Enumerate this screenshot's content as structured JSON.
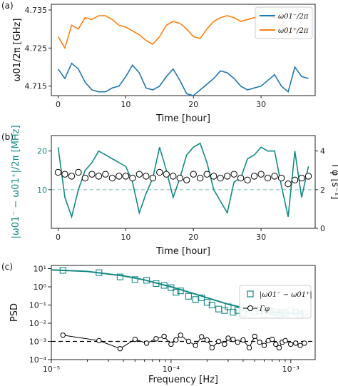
{
  "chart_data": [
    {
      "panel": "(a)",
      "type": "line",
      "xlabel": "Time [hour]",
      "ylabel": "ω01/2π [GHz]",
      "xlim": [
        -1,
        38
      ],
      "ylim": [
        4.7125,
        4.7365
      ],
      "xticks": [
        0,
        10,
        20,
        30
      ],
      "yticks": [
        4.715,
        4.725,
        4.735
      ],
      "colors": {
        "s1": "#1f77b4",
        "s2": "#ff7f0e"
      },
      "legend": [
        "ω01⁻/2π",
        "ω01⁺/2π"
      ],
      "legend_position": "top-right",
      "series": [
        {
          "name": "ω01⁻/2π",
          "x": [
            0,
            1,
            2,
            3,
            4,
            5,
            6,
            7,
            8,
            9,
            10,
            11,
            12,
            13,
            14,
            15,
            16,
            17,
            18,
            19,
            20,
            21,
            22,
            23,
            24,
            25,
            26,
            27,
            28,
            29,
            30,
            31,
            32,
            33,
            34,
            35,
            36,
            37
          ],
          "values": [
            4.7195,
            4.717,
            4.721,
            4.7195,
            4.716,
            4.714,
            4.7135,
            4.7135,
            4.7145,
            4.715,
            4.7175,
            4.7205,
            4.7185,
            4.7145,
            4.714,
            4.715,
            4.7175,
            4.7195,
            4.7165,
            4.713,
            4.7125,
            4.714,
            4.7155,
            4.717,
            4.719,
            4.7185,
            4.717,
            4.715,
            4.714,
            4.7145,
            4.715,
            4.7165,
            4.718,
            4.715,
            4.7135,
            4.72,
            4.7175,
            4.717
          ]
        },
        {
          "name": "ω01⁺/2π",
          "x": [
            0,
            1,
            2,
            3,
            4,
            5,
            6,
            7,
            8,
            9,
            10,
            11,
            12,
            13,
            14,
            15,
            16,
            17,
            18,
            19,
            20,
            21,
            22,
            23,
            24,
            25,
            26,
            27,
            28,
            29,
            30,
            31,
            32,
            33,
            34,
            35,
            36,
            37
          ],
          "values": [
            4.728,
            4.725,
            4.731,
            4.73,
            4.733,
            4.7325,
            4.7335,
            4.7335,
            4.7325,
            4.731,
            4.7305,
            4.7295,
            4.7285,
            4.727,
            4.726,
            4.728,
            4.731,
            4.732,
            4.7315,
            4.73,
            4.728,
            4.7275,
            4.73,
            4.732,
            4.733,
            4.7335,
            4.733,
            4.732,
            4.7325,
            4.733,
            4.7335,
            4.7335,
            4.733,
            4.733,
            4.7285,
            4.73,
            4.7295,
            4.7305
          ]
        }
      ]
    },
    {
      "panel": "(b)",
      "type": "line",
      "xlabel": "Time [hour]",
      "ylabel": "|ω01⁻ − ω01⁺|/2π [MHz]",
      "ylabel_right": "Γφ [s⁻¹]",
      "xlim": [
        -1,
        38
      ],
      "ylim": [
        0,
        24
      ],
      "ylim_right": [
        0,
        4.8
      ],
      "xticks": [
        0,
        10,
        20,
        30
      ],
      "yticks": [
        10,
        20
      ],
      "yticks_right": [
        0,
        2,
        4
      ],
      "hline": 10,
      "colors": {
        "diff": "#138a84",
        "gamma_face": "#ffffff",
        "gamma_edge": "#000000"
      },
      "series": [
        {
          "name": "|ω01⁻ − ω01⁺|/2π",
          "x": [
            0,
            1,
            2,
            3,
            4,
            5,
            6,
            7,
            8,
            9,
            10,
            11,
            12,
            13,
            14,
            15,
            16,
            17,
            18,
            19,
            20,
            21,
            22,
            23,
            24,
            25,
            26,
            27,
            28,
            29,
            30,
            31,
            32,
            33,
            34,
            35,
            36,
            37
          ],
          "values": [
            21,
            8,
            3,
            10,
            15,
            17,
            20,
            19,
            18,
            17,
            16,
            12,
            4,
            9,
            13,
            21,
            15,
            8,
            13,
            19,
            21,
            22,
            17,
            10,
            7,
            4,
            12,
            13,
            18,
            19,
            21,
            20,
            20,
            11,
            3,
            20,
            8,
            16
          ]
        },
        {
          "name": "Γφ",
          "x": [
            0,
            1,
            2,
            3,
            4,
            5,
            6,
            7,
            8,
            9,
            10,
            11,
            12,
            13,
            14,
            15,
            16,
            17,
            18,
            19,
            20,
            21,
            22,
            23,
            24,
            25,
            26,
            27,
            28,
            29,
            30,
            31,
            32,
            33,
            34,
            35,
            36,
            37
          ],
          "values": [
            2.9,
            2.8,
            2.7,
            2.9,
            2.6,
            2.8,
            2.7,
            2.8,
            2.6,
            2.7,
            2.7,
            2.6,
            2.8,
            2.7,
            2.6,
            2.9,
            2.8,
            2.7,
            2.6,
            2.5,
            2.8,
            2.6,
            2.8,
            2.7,
            2.6,
            2.7,
            2.8,
            2.6,
            2.5,
            2.7,
            2.8,
            2.6,
            2.7,
            2.6,
            2.3,
            2.5,
            2.6,
            2.7
          ]
        }
      ]
    },
    {
      "panel": "(c)",
      "type": "scatter",
      "xlabel": "Frequency [Hz]",
      "ylabel": "PSD",
      "xscale": "log",
      "yscale": "log",
      "xlim": [
        1e-05,
        0.0016
      ],
      "ylim": [
        0.0001,
        15
      ],
      "xtick_labels": [
        "10⁻⁵",
        "10⁻⁴",
        "10⁻³"
      ],
      "ytick_labels": [
        "10⁻⁴",
        "10⁻³",
        "10⁻²",
        "10⁻¹",
        "10⁰",
        "10¹"
      ],
      "hline": 0.001,
      "legend": [
        "|ω01⁻ − ω01⁺|",
        "Γφ"
      ],
      "legend_position": "right",
      "colors": {
        "psd": "#138a84",
        "gamma": "#000000"
      },
      "series": [
        {
          "name": "|ω01⁻ − ω01⁺|",
          "x": [
            1.25e-05,
            2.5e-05,
            3.75e-05,
            5e-05,
            6.25e-05,
            7.5e-05,
            8.75e-05,
            0.0001,
            0.00011,
            0.00012,
            0.00014,
            0.00016,
            0.00018,
            0.0002,
            0.00022,
            0.00025,
            0.00028,
            0.0003,
            0.00033,
            0.00036,
            0.0004,
            0.00045,
            0.0005,
            0.00055,
            0.0006,
            0.00065,
            0.0007,
            0.00075,
            0.0008,
            0.00085,
            0.0009,
            0.001,
            0.0011,
            0.0012,
            0.0013
          ],
          "values": [
            8,
            6,
            3.5,
            2.5,
            2.3,
            1.5,
            1.2,
            0.9,
            0.5,
            0.6,
            0.3,
            0.2,
            0.25,
            0.14,
            0.1,
            0.06,
            0.05,
            0.08,
            0.04,
            0.05,
            0.035,
            0.06,
            0.04,
            0.05,
            0.03,
            0.05,
            0.045,
            0.04,
            0.03,
            0.04,
            0.035,
            0.05,
            0.04,
            0.03,
            0.035
          ]
        },
        {
          "name": "Γφ",
          "x": [
            1.25e-05,
            2.5e-05,
            3.75e-05,
            5e-05,
            6.25e-05,
            7.5e-05,
            8.75e-05,
            0.0001,
            0.00011,
            0.00012,
            0.00014,
            0.00016,
            0.00018,
            0.0002,
            0.00022,
            0.00025,
            0.00028,
            0.0003,
            0.00033,
            0.00036,
            0.0004,
            0.00045,
            0.0005,
            0.00055,
            0.0006,
            0.00065,
            0.0007,
            0.00075,
            0.0008,
            0.00085,
            0.0009,
            0.001,
            0.0011,
            0.0012,
            0.0013
          ],
          "values": [
            0.0022,
            0.0011,
            0.0004,
            0.0013,
            0.0008,
            0.0014,
            0.0019,
            0.0007,
            0.0012,
            0.0022,
            0.001,
            0.0006,
            0.0018,
            0.0012,
            0.00045,
            0.001,
            0.0007,
            0.0015,
            0.0013,
            0.0009,
            0.0012,
            0.00045,
            0.0019,
            0.0009,
            0.0006,
            0.0011,
            0.0013,
            0.0007,
            0.00045,
            0.0009,
            0.0011,
            0.0007,
            0.0008,
            0.0006,
            0.0008
          ]
        },
        {
          "name": "fit",
          "x": [
            1e-05,
            2e-05,
            4e-05,
            6e-05,
            0.0001,
            0.00015,
            0.0002,
            0.0003,
            0.0004,
            0.0006,
            0.0008,
            0.001,
            0.0013
          ],
          "values": [
            8.5,
            7,
            4,
            2.4,
            1.0,
            0.45,
            0.25,
            0.11,
            0.07,
            0.045,
            0.038,
            0.035,
            0.033
          ]
        }
      ]
    }
  ]
}
